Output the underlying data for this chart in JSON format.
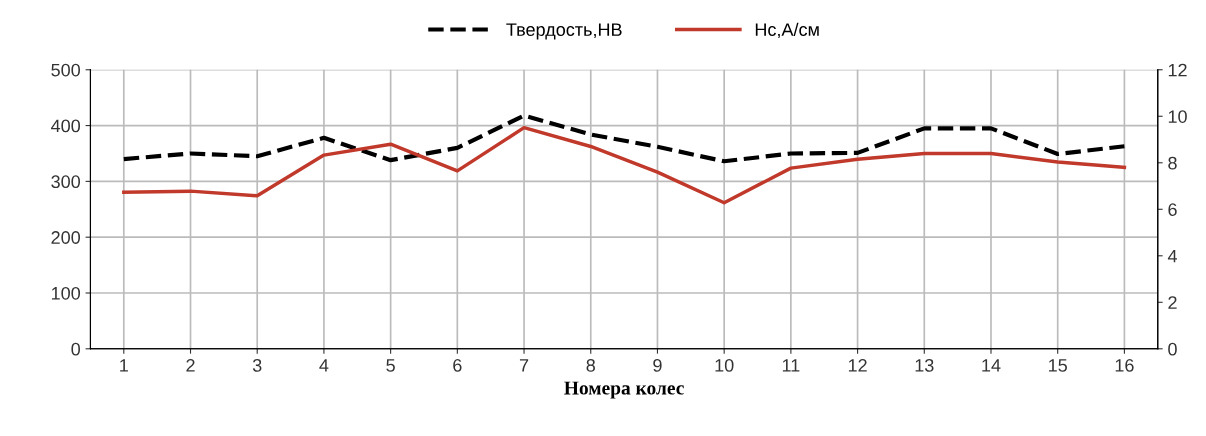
{
  "chart_data": {
    "type": "line",
    "xlabel": "Номера колес",
    "categories": [
      "1",
      "2",
      "3",
      "4",
      "5",
      "6",
      "7",
      "8",
      "9",
      "10",
      "11",
      "12",
      "13",
      "14",
      "15",
      "16"
    ],
    "series": [
      {
        "name": "Твердость,НВ",
        "color": "#000000",
        "line_style": "dashed",
        "values": [
          340,
          350,
          345,
          378,
          338,
          360,
          418,
          384,
          362,
          336,
          350,
          351,
          395,
          395,
          349,
          363
        ]
      },
      {
        "name": "Нс,А/см",
        "color": "#c0392b",
        "line_style": "solid",
        "axis": "y2",
        "values": [
          6.73,
          6.78,
          6.58,
          8.33,
          8.8,
          7.65,
          9.51,
          8.7,
          7.6,
          6.28,
          7.77,
          8.15,
          8.4,
          8.4,
          8.03,
          7.8
        ]
      }
    ],
    "ylim": [
      0,
      500
    ],
    "yticks": [
      0,
      100,
      200,
      300,
      400,
      500
    ],
    "y2lim": [
      0,
      12
    ],
    "y2ticks": [
      0,
      2,
      4,
      6,
      8,
      10,
      12
    ],
    "grid": true,
    "legend": "top"
  }
}
